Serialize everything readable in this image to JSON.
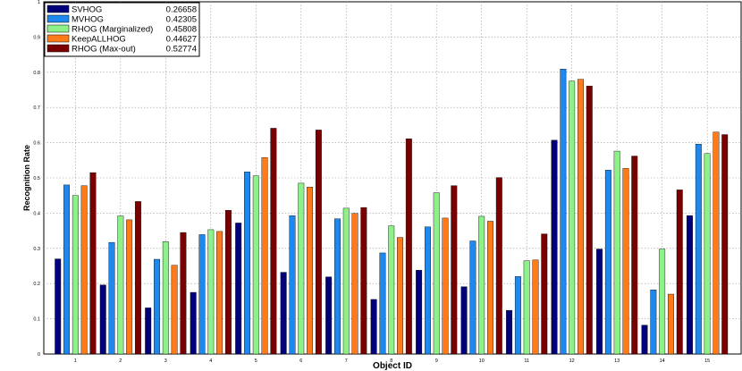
{
  "chart_data": {
    "type": "bar",
    "title": "",
    "xlabel": "Object ID",
    "ylabel": "Recognition Rate",
    "ylim": [
      0,
      1
    ],
    "yticks": [
      "0",
      "0.1",
      "0.2",
      "0.3",
      "0.4",
      "0.5",
      "0.6",
      "0.7",
      "0.8",
      "0.9",
      "1"
    ],
    "grid": true,
    "legend_position": "top-left",
    "categories": [
      "1",
      "2",
      "3",
      "4",
      "5",
      "6",
      "7",
      "8",
      "9",
      "10",
      "11",
      "12",
      "13",
      "14",
      "15"
    ],
    "series": [
      {
        "name": "SVHOG",
        "score": "0.26658",
        "color": "#00007a",
        "values": [
          0.27,
          0.196,
          0.131,
          0.175,
          0.372,
          0.232,
          0.219,
          0.155,
          0.238,
          0.191,
          0.124,
          0.607,
          0.298,
          0.082,
          0.393
        ]
      },
      {
        "name": "MVHOG",
        "score": "0.42305",
        "color": "#1e88ee",
        "values": [
          0.48,
          0.317,
          0.269,
          0.339,
          0.517,
          0.393,
          0.384,
          0.287,
          0.361,
          0.321,
          0.22,
          0.809,
          0.522,
          0.182,
          0.596
        ]
      },
      {
        "name": "RHOG (Marginalized)",
        "score": "0.45808",
        "color": "#8ef088",
        "values": [
          0.45,
          0.392,
          0.319,
          0.353,
          0.506,
          0.485,
          0.414,
          0.364,
          0.458,
          0.391,
          0.265,
          0.775,
          0.576,
          0.298,
          0.569
        ]
      },
      {
        "name": "KeepALLHOG",
        "score": "0.44627",
        "color": "#ff7a18",
        "values": [
          0.478,
          0.381,
          0.252,
          0.348,
          0.558,
          0.474,
          0.399,
          0.331,
          0.386,
          0.377,
          0.267,
          0.78,
          0.527,
          0.17,
          0.63
        ]
      },
      {
        "name": "RHOG (Max-out)",
        "score": "0.52774",
        "color": "#7a0000",
        "values": [
          0.515,
          0.433,
          0.345,
          0.408,
          0.641,
          0.636,
          0.416,
          0.611,
          0.478,
          0.501,
          0.341,
          0.761,
          0.562,
          0.466,
          0.623
        ]
      }
    ]
  }
}
